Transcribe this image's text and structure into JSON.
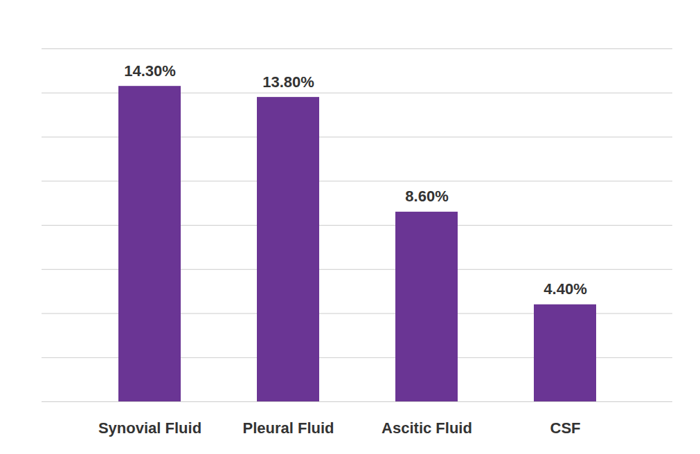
{
  "chart_data": {
    "type": "bar",
    "categories": [
      "Synovial Fluid",
      "Pleural Fluid",
      "Ascitic Fluid",
      "CSF"
    ],
    "values": [
      14.3,
      13.8,
      8.6,
      4.4
    ],
    "value_labels": [
      "14.30%",
      "13.80%",
      "8.60%",
      "4.40%"
    ],
    "color": "#6a3594",
    "ylim": [
      0,
      16
    ],
    "yticks": [
      0,
      2,
      4,
      6,
      8,
      10,
      12,
      14,
      16
    ],
    "grid": true,
    "data_labels": true,
    "tick_labels": "x"
  }
}
